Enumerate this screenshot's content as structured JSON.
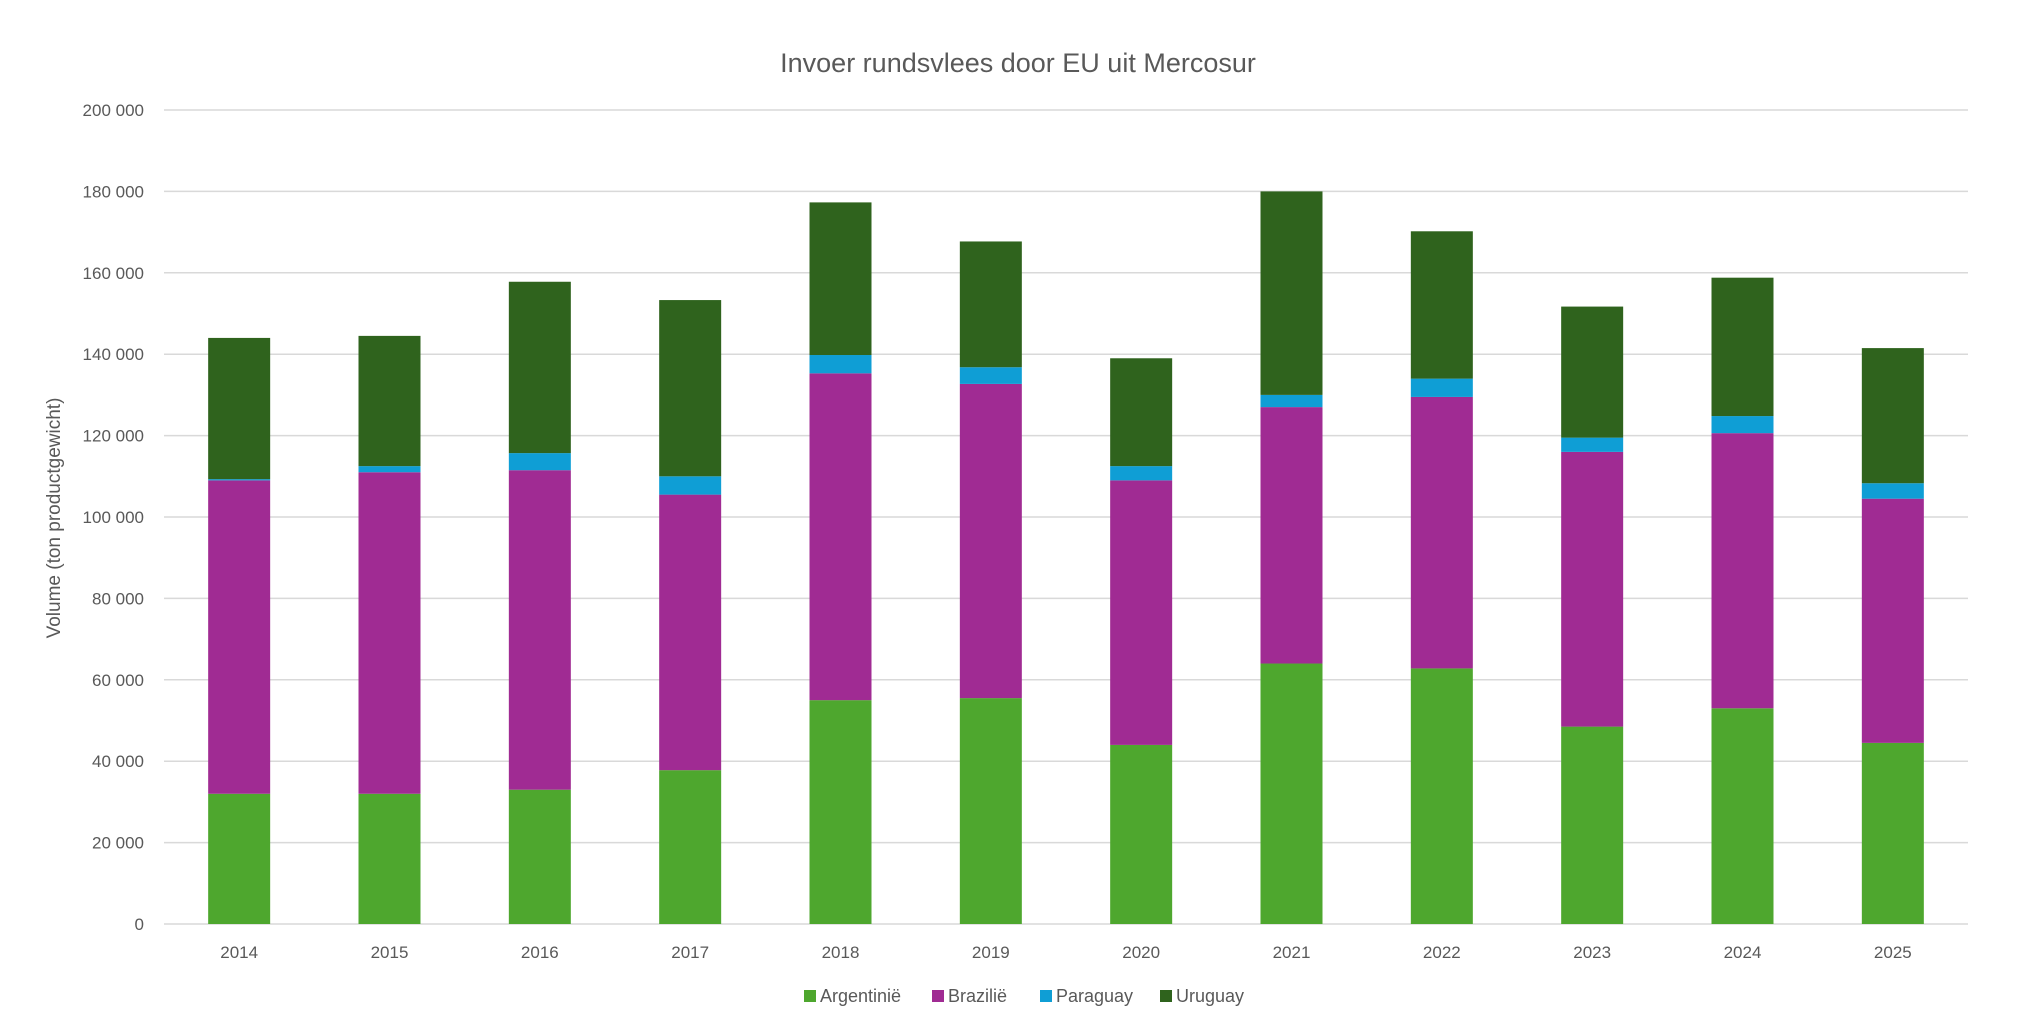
{
  "chart_data": {
    "type": "bar",
    "stacked": true,
    "title": "Invoer rundsvlees door EU uit Mercosur",
    "xlabel": "",
    "ylabel": "Volume (ton productgewicht)",
    "ylim": [
      0,
      200000
    ],
    "yticks": [
      0,
      20000,
      40000,
      60000,
      80000,
      100000,
      120000,
      140000,
      160000,
      180000,
      200000
    ],
    "ytick_labels": [
      "0",
      "20 000",
      "40 000",
      "60 000",
      "80 000",
      "100 000",
      "120 000",
      "140 000",
      "160 000",
      "180 000",
      "200 000"
    ],
    "grid": true,
    "legend_position": "bottom",
    "categories": [
      "2014",
      "2015",
      "2016",
      "2017",
      "2018",
      "2019",
      "2020",
      "2021",
      "2022",
      "2023",
      "2024",
      "2025"
    ],
    "series": [
      {
        "name": "Argentinië",
        "color": "#4EA72E",
        "values": [
          32000,
          32000,
          33000,
          37800,
          55000,
          55500,
          44000,
          64000,
          62800,
          48500,
          53000,
          44500
        ]
      },
      {
        "name": "Brazilië",
        "color": "#A02B93",
        "values": [
          77000,
          79000,
          78500,
          67700,
          80300,
          77200,
          65000,
          63000,
          66700,
          67500,
          67600,
          60000
        ]
      },
      {
        "name": "Paraguay",
        "color": "#0F9ED5",
        "values": [
          300,
          1500,
          4200,
          4500,
          4500,
          4100,
          3500,
          3000,
          4500,
          3500,
          4200,
          3800
        ]
      },
      {
        "name": "Uruguay",
        "color": "#2F631D",
        "values": [
          34700,
          32000,
          42100,
          43300,
          37500,
          30900,
          26500,
          50000,
          36200,
          32200,
          34000,
          33200
        ]
      }
    ]
  }
}
